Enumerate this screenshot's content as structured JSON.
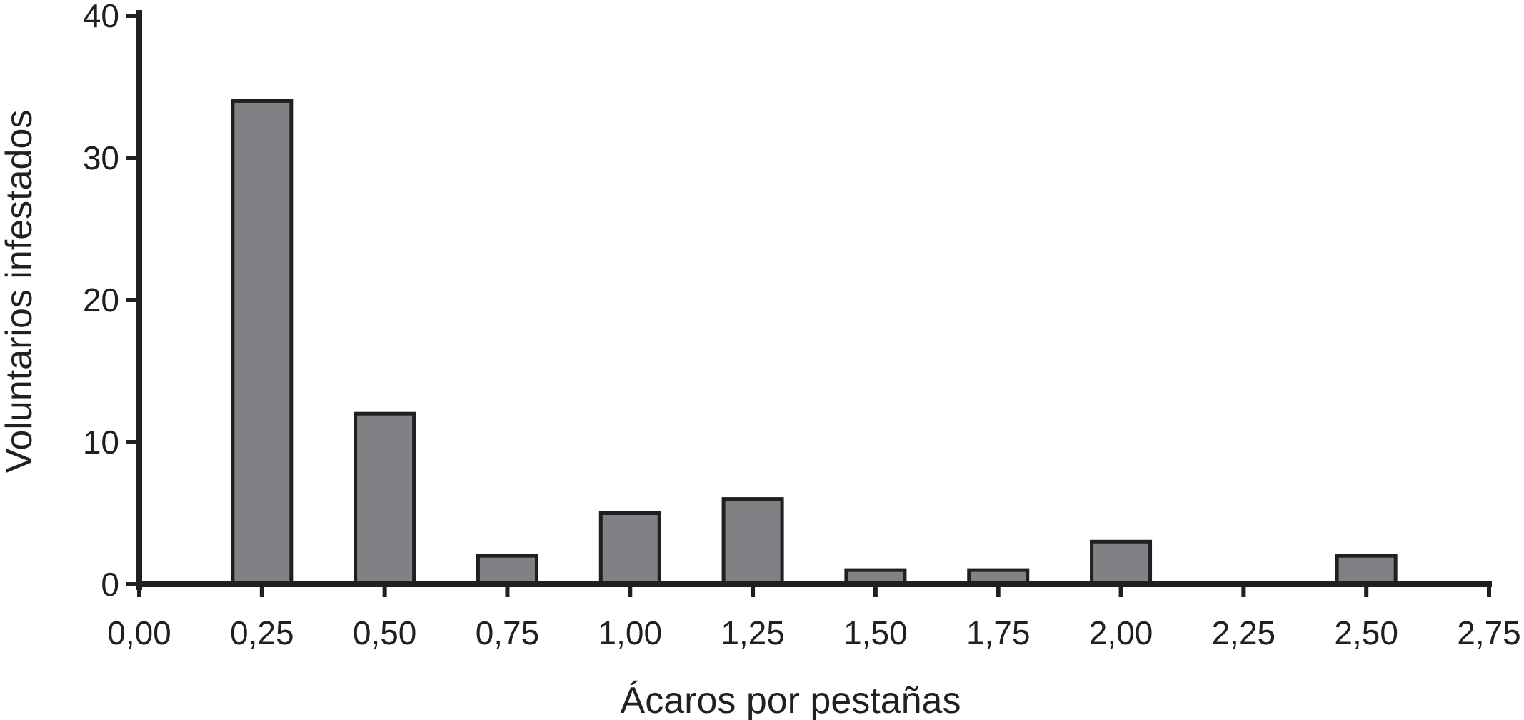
{
  "chart_data": {
    "type": "bar",
    "title": "",
    "xlabel": "Ácaros por pestañas",
    "ylabel": "Voluntarios infestados",
    "x_ticks": [
      "0,00",
      "0,25",
      "0,50",
      "0,75",
      "1,00",
      "1,25",
      "1,50",
      "1,75",
      "2,00",
      "2,25",
      "2,50",
      "2,75"
    ],
    "y_ticks": [
      "0",
      "10",
      "20",
      "30",
      "40"
    ],
    "xlim": [
      0,
      2.75
    ],
    "ylim": [
      0,
      40
    ],
    "grid": false,
    "legend": "none",
    "bars": [
      {
        "x": 0.25,
        "value": 34
      },
      {
        "x": 0.5,
        "value": 12
      },
      {
        "x": 0.75,
        "value": 2
      },
      {
        "x": 1.0,
        "value": 5
      },
      {
        "x": 1.25,
        "value": 6
      },
      {
        "x": 1.5,
        "value": 1
      },
      {
        "x": 1.75,
        "value": 1
      },
      {
        "x": 2.0,
        "value": 3
      },
      {
        "x": 2.25,
        "value": 0
      },
      {
        "x": 2.5,
        "value": 2
      }
    ],
    "colors": {
      "bar_fill": "#808184",
      "bar_stroke": "#231f20",
      "axis": "#231f20",
      "text": "#231f20"
    }
  }
}
